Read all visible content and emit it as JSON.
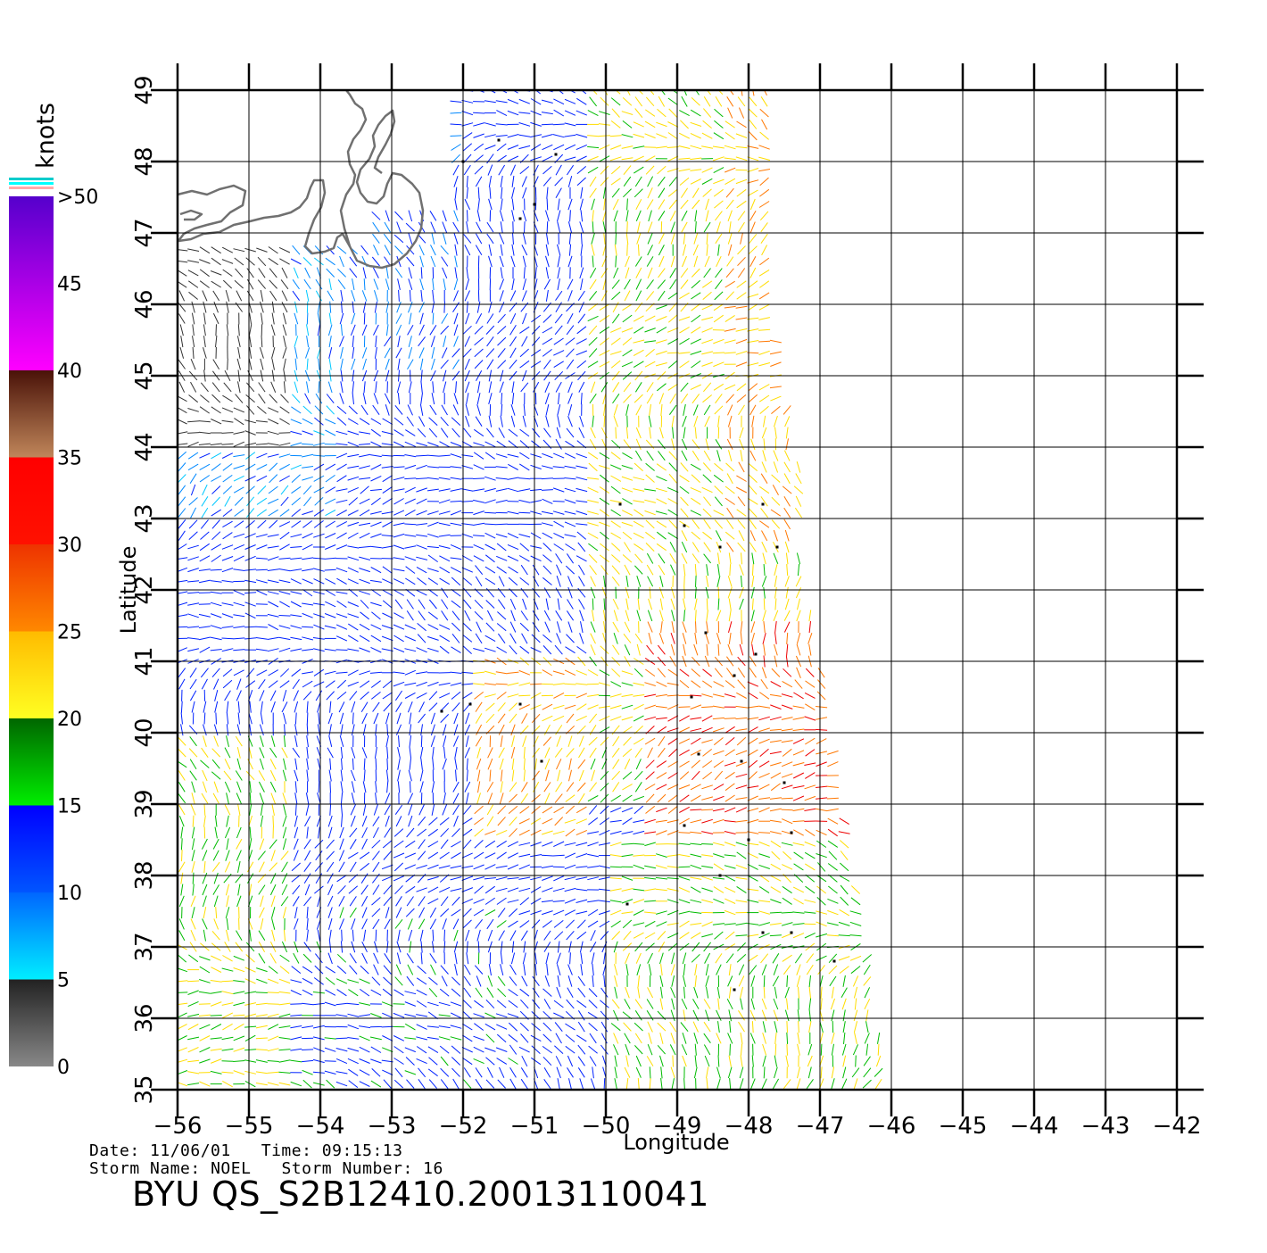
{
  "units_label": "knots",
  "axes": {
    "xlabel": "Longitude",
    "ylabel": "Latitude",
    "lon_ticks": [
      "−56",
      "−55",
      "−54",
      "−53",
      "−52",
      "−51",
      "−50",
      "−49",
      "−48",
      "−47",
      "−46",
      "−45",
      "−44",
      "−43",
      "−42"
    ],
    "lat_ticks": [
      "35",
      "36",
      "37",
      "38",
      "39",
      "40",
      "41",
      "42",
      "43",
      "44",
      "45",
      "46",
      "47",
      "48",
      "49"
    ],
    "lon_range": [
      -56,
      -42
    ],
    "lat_range": [
      35,
      49
    ],
    "grid": true
  },
  "colorbar": {
    "labels": [
      "0",
      "5",
      "10",
      "15",
      "20",
      "25",
      "30",
      "35",
      "40",
      "45",
      ">50"
    ],
    "bands": [
      {
        "range": [
          0,
          5
        ],
        "color_bottom": "#888888",
        "color_top": "#222222"
      },
      {
        "range": [
          5,
          10
        ],
        "color_bottom": "#00eeff",
        "color_top": "#0066ff"
      },
      {
        "range": [
          10,
          15
        ],
        "color_bottom": "#0055ff",
        "color_top": "#0000ff"
      },
      {
        "range": [
          15,
          20
        ],
        "color_bottom": "#00ee00",
        "color_top": "#006600"
      },
      {
        "range": [
          20,
          25
        ],
        "color_bottom": "#ffff22",
        "color_top": "#ffbb00"
      },
      {
        "range": [
          25,
          30
        ],
        "color_bottom": "#ff8800",
        "color_top": "#ee3300"
      },
      {
        "range": [
          30,
          35
        ],
        "color_bottom": "#ff1100",
        "color_top": "#ff0000"
      },
      {
        "range": [
          35,
          40
        ],
        "color_bottom": "#c0865a",
        "color_top": "#4a1208"
      },
      {
        "range": [
          40,
          50
        ],
        "color_bottom": "#ff00ff",
        "color_top": "#5500cc"
      }
    ],
    "top_stripes": [
      "#00cccc",
      "#00ffff",
      "#ffaaaa"
    ]
  },
  "colors": {
    "coastline": "#707070",
    "grid": "#000000",
    "rain_flag": "#000000"
  },
  "footer": {
    "date_label": "Date:",
    "date": "11/06/01",
    "time_label": "Time:",
    "time": "09:15:13",
    "storm_name_label": "Storm Name:",
    "storm_name": "NOEL",
    "storm_number_label": "Storm Number:",
    "storm_number": "16",
    "product_id": "BYU  QS_S2B12410.20013110041"
  }
}
